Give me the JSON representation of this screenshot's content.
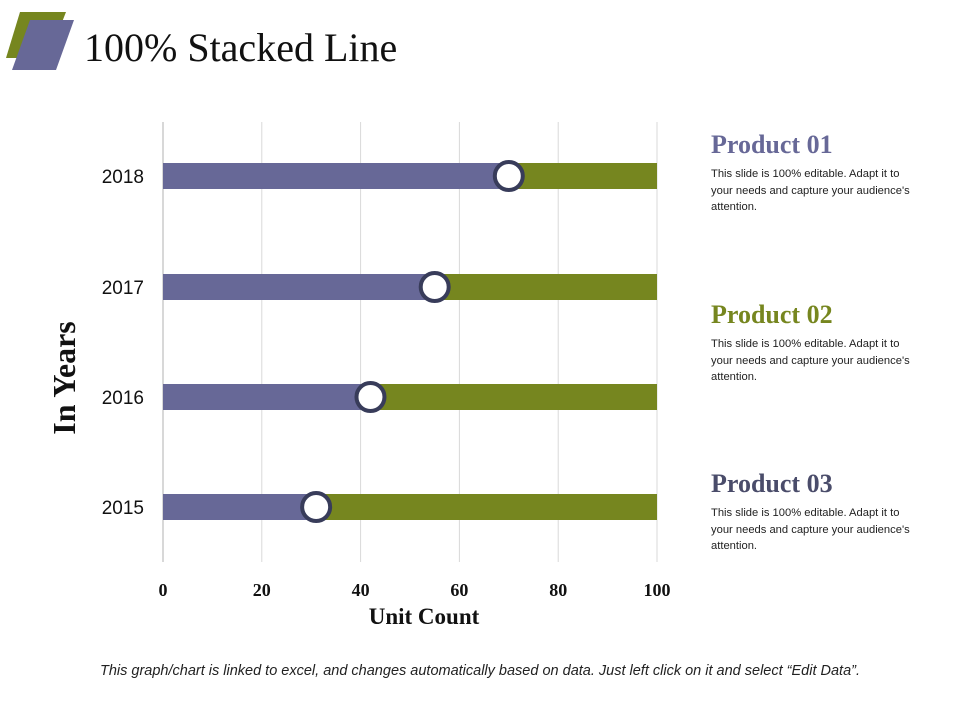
{
  "title": "100% Stacked Line",
  "colors": {
    "series1": "#676897",
    "series2": "#76861f",
    "marker_stroke": "#383c5a",
    "logo_back": "#76861f",
    "logo_front": "#676897"
  },
  "chart_data": {
    "type": "bar",
    "orientation": "horizontal",
    "stacked": "100%",
    "categories": [
      "2018",
      "2017",
      "2016",
      "2015"
    ],
    "series": [
      {
        "values": [
          70,
          55,
          42,
          31
        ]
      },
      {
        "values": [
          30,
          45,
          58,
          69
        ]
      }
    ],
    "xlim": [
      0,
      100
    ],
    "xticks": [
      "0",
      "20",
      "40",
      "60",
      "80",
      "100"
    ],
    "xlabel": "Unit Count",
    "ylabel": "In Years",
    "grid": true
  },
  "products": [
    {
      "title": "Product 01",
      "desc": "This slide is 100% editable. Adapt it to your needs and capture your audience's attention.",
      "color": "#676897"
    },
    {
      "title": "Product 02",
      "desc": "This slide is 100% editable. Adapt it to your needs and capture your audience's attention.",
      "color": "#76861f"
    },
    {
      "title": "Product 03",
      "desc": "This slide is 100% editable. Adapt it to your needs and capture your audience's attention.",
      "color": "#4a4c6a"
    }
  ],
  "footer": "This graph/chart is linked to excel, and changes automatically based on data. Just left click on it and select “Edit Data”."
}
